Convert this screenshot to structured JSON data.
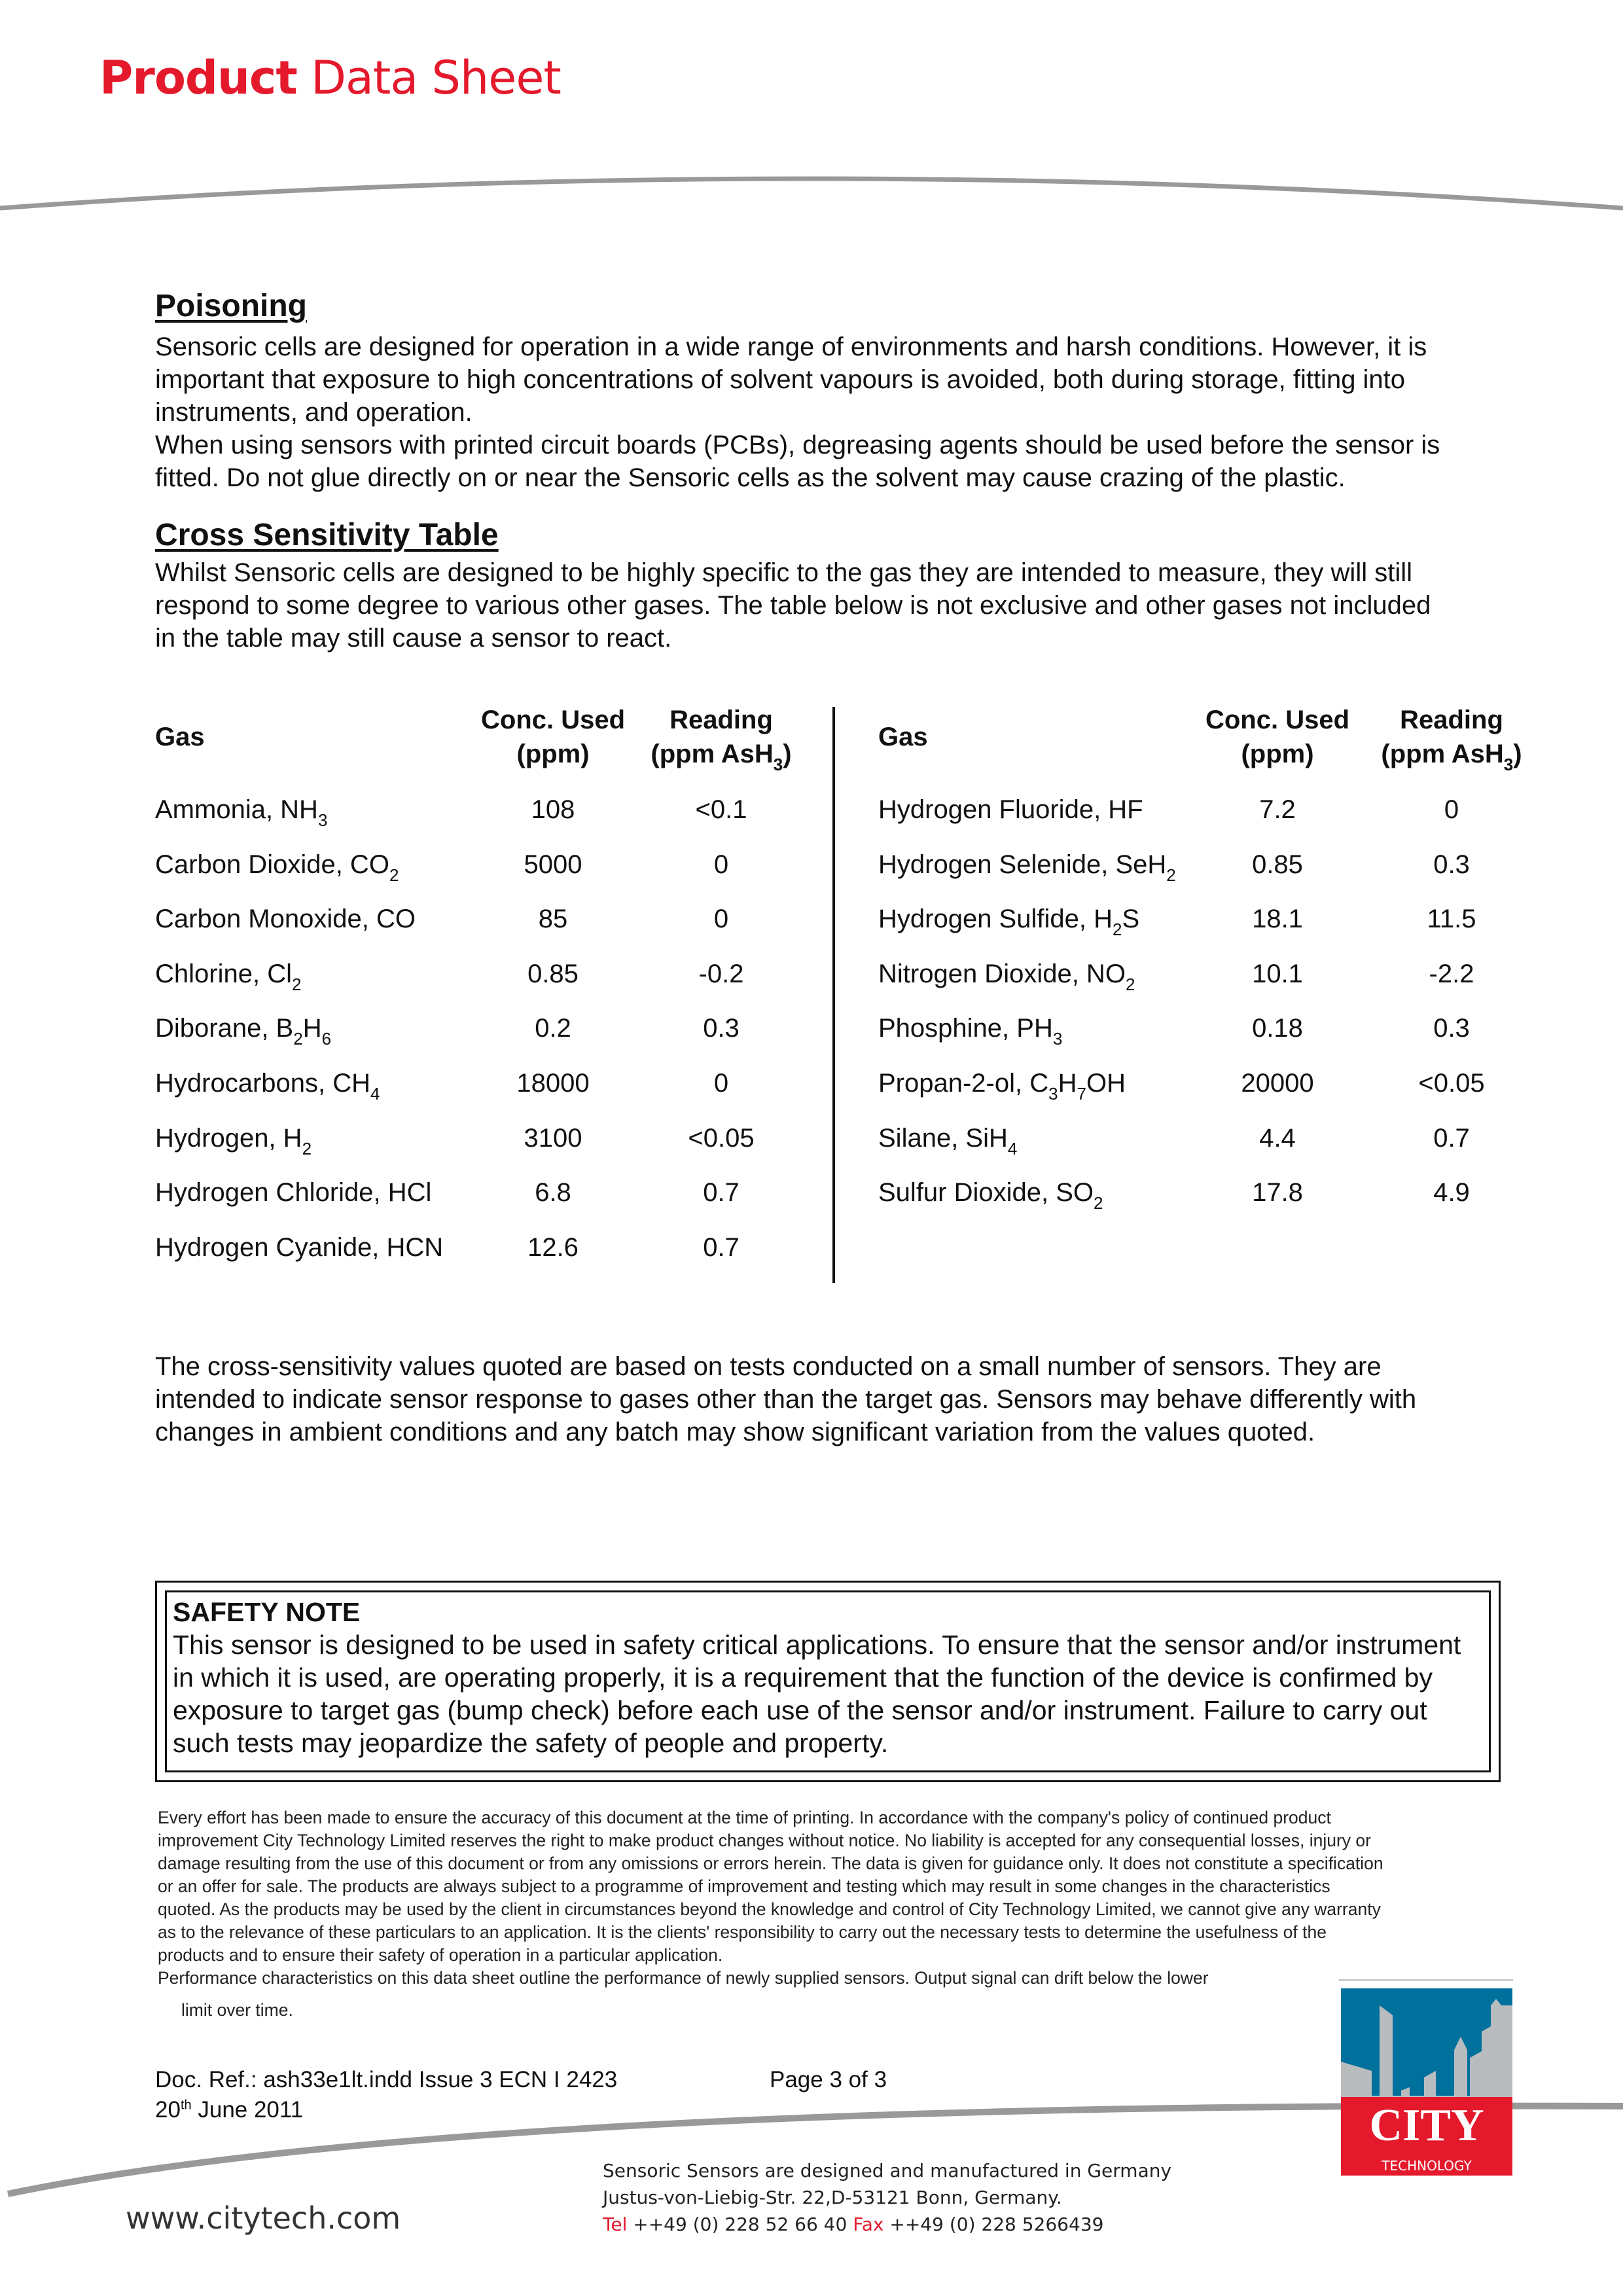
{
  "header": {
    "title_bold": "Product",
    "title_rest": "Data Sheet"
  },
  "colors": {
    "brand_red": "#e4192c",
    "logo_blue": "#00709c",
    "logo_gray": "#b9bcbf",
    "rule_gray": "#999999"
  },
  "poisoning": {
    "heading": "Poisoning",
    "lines": [
      "Sensoric cells are designed for operation in a wide range of environments and harsh conditions. However, it is",
      "important that exposure to high concentrations of solvent vapours is avoided, both during storage, fitting into",
      "instruments, and operation.",
      "When using sensors with printed circuit boards (PCBs), degreasing agents should be used before the sensor is",
      "fitted. Do not glue directly on or near the Sensoric cells as the solvent may cause crazing of the plastic."
    ]
  },
  "cross": {
    "heading": "Cross Sensitivity Table",
    "lines": [
      "Whilst Sensoric cells are designed to be highly specific to the gas they are intended to measure, they will still",
      "respond to some degree to various other gases. The table below is not exclusive and other gases not included",
      "in the table may still cause a sensor to react."
    ],
    "headers": {
      "gas": "Gas",
      "conc_1": "Conc. Used",
      "conc_2": "(ppm)",
      "read_1": "Reading",
      "read_2": "(ppm AsH",
      "read_sub": "3",
      "read_end": ")"
    },
    "left": [
      {
        "gas": [
          {
            "t": "Ammonia, NH"
          },
          {
            "s": "3"
          }
        ],
        "conc": "108",
        "reading": "<0.1"
      },
      {
        "gas": [
          {
            "t": "Carbon Dioxide, CO"
          },
          {
            "s": "2"
          }
        ],
        "conc": "5000",
        "reading": "0"
      },
      {
        "gas": [
          {
            "t": "Carbon Monoxide, CO"
          }
        ],
        "conc": "85",
        "reading": "0"
      },
      {
        "gas": [
          {
            "t": "Chlorine, Cl"
          },
          {
            "s": "2"
          }
        ],
        "conc": "0.85",
        "reading": "-0.2"
      },
      {
        "gas": [
          {
            "t": "Diborane, B"
          },
          {
            "s": "2"
          },
          {
            "t": "H"
          },
          {
            "s": "6"
          }
        ],
        "conc": "0.2",
        "reading": "0.3"
      },
      {
        "gas": [
          {
            "t": "Hydrocarbons, CH"
          },
          {
            "s": "4"
          }
        ],
        "conc": "18000",
        "reading": "0"
      },
      {
        "gas": [
          {
            "t": "Hydrogen, H"
          },
          {
            "s": "2"
          }
        ],
        "conc": "3100",
        "reading": "<0.05"
      },
      {
        "gas": [
          {
            "t": "Hydrogen Chloride, HCl"
          }
        ],
        "conc": "6.8",
        "reading": "0.7"
      },
      {
        "gas": [
          {
            "t": "Hydrogen Cyanide, HCN"
          }
        ],
        "conc": "12.6",
        "reading": "0.7"
      }
    ],
    "right": [
      {
        "gas": [
          {
            "t": "Hydrogen Fluoride, HF"
          }
        ],
        "conc": "7.2",
        "reading": "0"
      },
      {
        "gas": [
          {
            "t": "Hydrogen Selenide, SeH"
          },
          {
            "s": "2"
          }
        ],
        "conc": "0.85",
        "reading": "0.3"
      },
      {
        "gas": [
          {
            "t": "Hydrogen Sulfide, H"
          },
          {
            "s": "2"
          },
          {
            "t": "S"
          }
        ],
        "conc": "18.1",
        "reading": "11.5"
      },
      {
        "gas": [
          {
            "t": "Nitrogen Dioxide, NO"
          },
          {
            "s": "2"
          }
        ],
        "conc": "10.1",
        "reading": "-2.2"
      },
      {
        "gas": [
          {
            "t": "Phosphine, PH"
          },
          {
            "s": "3"
          }
        ],
        "conc": "0.18",
        "reading": "0.3"
      },
      {
        "gas": [
          {
            "t": "Propan-2-ol, C"
          },
          {
            "s": "3"
          },
          {
            "t": "H"
          },
          {
            "s": "7"
          },
          {
            "t": "OH"
          }
        ],
        "conc": "20000",
        "reading": "<0.05"
      },
      {
        "gas": [
          {
            "t": "Silane, SiH"
          },
          {
            "s": "4"
          }
        ],
        "conc": "4.4",
        "reading": "0.7"
      },
      {
        "gas": [
          {
            "t": "Sulfur Dioxide, SO"
          },
          {
            "s": "2"
          }
        ],
        "conc": "17.8",
        "reading": "4.9"
      }
    ],
    "note_lines": [
      "The cross-sensitivity values quoted are based on tests conducted on a small number of sensors. They are",
      "intended to indicate sensor response to gases other than the target gas. Sensors may behave differently with",
      "changes in ambient conditions and any batch may show significant variation from the values quoted."
    ]
  },
  "safety": {
    "heading": "SAFETY NOTE",
    "lines": [
      "This sensor is designed to be used in safety critical applications. To ensure that the sensor and/or instrument",
      "in which it is used, are operating properly, it is a requirement that the function of the device is confirmed by",
      "exposure to target gas (bump check) before each use of the sensor and/or instrument. Failure to carry out",
      "such tests may jeopardize the safety of people and property."
    ]
  },
  "disclaimer": {
    "lines": [
      "Every effort has been made to ensure the accuracy of this document at the time of printing. In accordance with the company's policy of continued product",
      "improvement City Technology Limited reserves the right to make product changes without notice. No liability is accepted for any consequential losses, injury or",
      "damage resulting from the use of this document or from any omissions or errors herein. The data is given for guidance only. It does not constitute a specification",
      "or an offer for sale. The products are always subject to a programme of improvement and testing which may result in some changes in the characteristics",
      "quoted. As the products may be used by the client in circumstances beyond the knowledge and control of City Technology Limited, we cannot give any warranty",
      "as to the relevance of these particulars to an application. It is the clients' responsibility to carry out the necessary tests to determine the usefulness of the",
      "products and to ensure their safety of operation in a particular application.",
      "Performance characteristics on this data sheet outline the performance of newly supplied sensors. Output signal can drift below the lower"
    ],
    "tail": "limit over time."
  },
  "footer": {
    "doc_ref": "Doc. Ref.: ash33e1lt.indd Issue 3  ECN I 2423",
    "page": "Page 3 of 3",
    "date_day": "20",
    "date_sup": "th",
    "date_rest": " June 2011",
    "website": "www.citytech.com",
    "made_in": "Sensoric Sensors are designed and manufactured in Germany",
    "address": "Justus-von-Liebig-Str. 22,D-53121 Bonn, Germany.",
    "tel_label": "Tel",
    "tel": " ++49 (0) 228 52 66 40 ",
    "fax_label": "Fax",
    "fax": " ++49 (0) 228 5266439"
  },
  "logo": {
    "word": "CITY",
    "sub": "TECHNOLOGY"
  }
}
